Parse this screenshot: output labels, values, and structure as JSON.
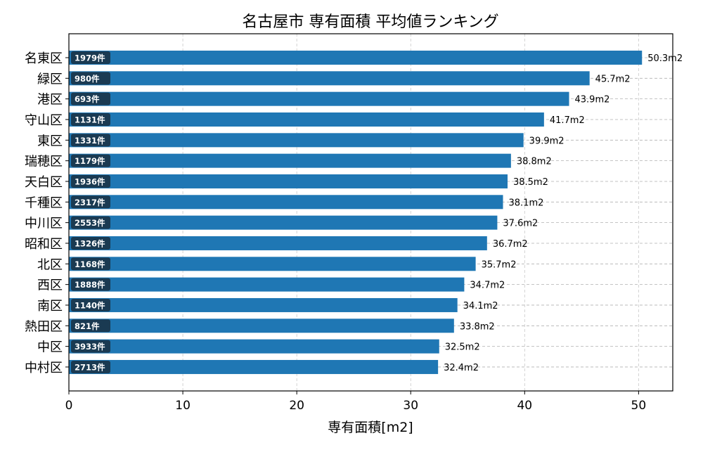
{
  "chart_data": {
    "type": "bar",
    "orientation": "horizontal",
    "title": "名古屋市 専有面積 平均値ランキング",
    "xlabel": "専有面積[m2]",
    "ylabel": "",
    "xlim": [
      0,
      53
    ],
    "xticks": [
      0,
      10,
      20,
      30,
      40,
      50
    ],
    "grid": true,
    "bar_color": "#1f77b4",
    "count_badge_color": "#1a3a52",
    "categories": [
      "名東区",
      "緑区",
      "港区",
      "守山区",
      "東区",
      "瑞穂区",
      "天白区",
      "千種区",
      "中川区",
      "昭和区",
      "北区",
      "西区",
      "南区",
      "熱田区",
      "中区",
      "中村区"
    ],
    "values": [
      50.3,
      45.7,
      43.9,
      41.7,
      39.9,
      38.8,
      38.5,
      38.1,
      37.6,
      36.7,
      35.7,
      34.7,
      34.1,
      33.8,
      32.5,
      32.4
    ],
    "value_labels": [
      "50.3m2",
      "45.7m2",
      "43.9m2",
      "41.7m2",
      "39.9m2",
      "38.8m2",
      "38.5m2",
      "38.1m2",
      "37.6m2",
      "36.7m2",
      "35.7m2",
      "34.7m2",
      "34.1m2",
      "33.8m2",
      "32.5m2",
      "32.4m2"
    ],
    "count_labels": [
      "1979件",
      "980件",
      "693件",
      "1131件",
      "1331件",
      "1179件",
      "1936件",
      "2317件",
      "2553件",
      "1326件",
      "1168件",
      "1888件",
      "1140件",
      "821件",
      "3933件",
      "2713件"
    ]
  }
}
